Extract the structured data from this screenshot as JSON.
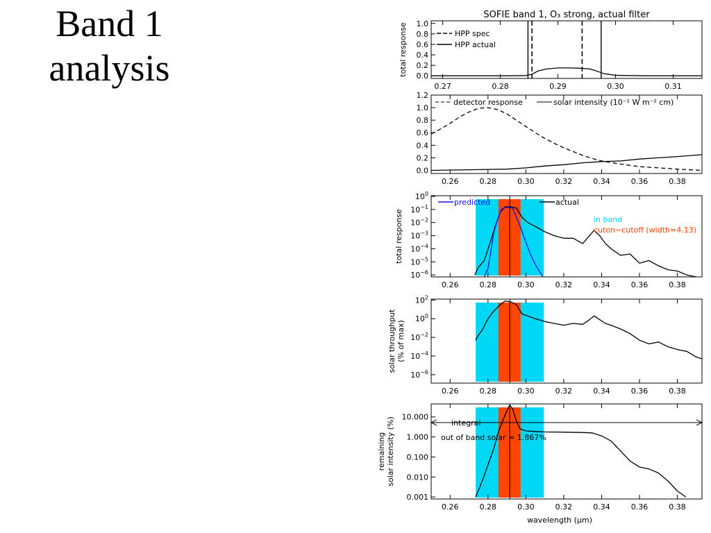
{
  "slide": {
    "title_line1": "Band 1",
    "title_line2": "analysis"
  },
  "colors": {
    "in_band": "#00d8f6",
    "cutoff": "#ff4500",
    "predicted": "#1010ee",
    "axis": "#000000"
  },
  "chart_data": [
    {
      "id": "filter",
      "type": "line",
      "title": "SOFIE band   1, O₃ strong, actual filter",
      "ylabel": "total response",
      "xlim": [
        0.268,
        0.315
      ],
      "ylim": [
        -0.05,
        1.05
      ],
      "yscale": "linear",
      "xticks": [
        0.27,
        0.28,
        0.29,
        0.3,
        0.31
      ],
      "xtick_labels": [
        "0.27",
        "0.28",
        "0.29",
        "0.30",
        "0.31"
      ],
      "yticks": [
        0.0,
        0.2,
        0.4,
        0.6,
        0.8,
        1.0
      ],
      "ytick_labels": [
        "0.0",
        "0.2",
        "0.4",
        "0.6",
        "0.8",
        "1.0"
      ],
      "legend_position": "top-left",
      "series": [
        {
          "name": "HPP actual",
          "style": "solid",
          "x": [
            0.268,
            0.282,
            0.2845,
            0.2855,
            0.2865,
            0.288,
            0.29,
            0.292,
            0.294,
            0.2955,
            0.2965,
            0.298,
            0.3,
            0.305,
            0.315
          ],
          "y": [
            0.0,
            0.0,
            0.005,
            0.03,
            0.09,
            0.13,
            0.15,
            0.15,
            0.145,
            0.13,
            0.1,
            0.04,
            0.01,
            0.0,
            0.0
          ]
        }
      ],
      "vlines": [
        {
          "name": "HPP spec",
          "style": "dashed",
          "x": [
            0.2855,
            0.2942
          ]
        },
        {
          "name": "HPP actual",
          "style": "solid",
          "x": [
            0.2848,
            0.2975
          ]
        }
      ]
    },
    {
      "id": "detector-solar",
      "type": "line",
      "title": "",
      "ylabel": "",
      "xlim": [
        0.25,
        0.393
      ],
      "ylim": [
        -0.05,
        1.2
      ],
      "yscale": "linear",
      "xticks": [
        0.26,
        0.28,
        0.3,
        0.32,
        0.34,
        0.36,
        0.38
      ],
      "xtick_labels": [
        "0.26",
        "0.28",
        "0.30",
        "0.32",
        "0.34",
        "0.36",
        "0.38"
      ],
      "yticks": [
        0.0,
        0.2,
        0.4,
        0.6,
        0.8,
        1.0,
        1.2
      ],
      "ytick_labels": [
        "0.0",
        "0.2",
        "0.4",
        "0.6",
        "0.8",
        "1.0",
        "1.2"
      ],
      "legend_position": "top",
      "series": [
        {
          "name": "detector response",
          "style": "dashed",
          "x": [
            0.25,
            0.255,
            0.26,
            0.265,
            0.27,
            0.275,
            0.28,
            0.285,
            0.29,
            0.295,
            0.3,
            0.305,
            0.31,
            0.315,
            0.32,
            0.325,
            0.33,
            0.335,
            0.34,
            0.35,
            0.36,
            0.37,
            0.38,
            0.393
          ],
          "y": [
            0.58,
            0.66,
            0.75,
            0.85,
            0.93,
            0.99,
            1.0,
            0.97,
            0.9,
            0.8,
            0.7,
            0.6,
            0.51,
            0.43,
            0.36,
            0.3,
            0.24,
            0.19,
            0.15,
            0.1,
            0.06,
            0.04,
            0.02,
            0.0
          ]
        },
        {
          "name": "solar intensity (10⁻¹ W m⁻² cm)",
          "style": "solid",
          "x": [
            0.25,
            0.27,
            0.29,
            0.3,
            0.31,
            0.32,
            0.33,
            0.34,
            0.35,
            0.36,
            0.37,
            0.38,
            0.393
          ],
          "y": [
            0.0,
            0.01,
            0.02,
            0.04,
            0.07,
            0.09,
            0.12,
            0.14,
            0.15,
            0.18,
            0.2,
            0.22,
            0.25
          ]
        }
      ]
    },
    {
      "id": "response-log",
      "type": "line",
      "title": "",
      "ylabel": "total response",
      "xlim": [
        0.25,
        0.393
      ],
      "ylim": [
        -6.15,
        0.05
      ],
      "yscale": "log",
      "xticks": [
        0.26,
        0.28,
        0.3,
        0.32,
        0.34,
        0.36,
        0.38
      ],
      "xtick_labels": [
        "0.26",
        "0.28",
        "0.30",
        "0.32",
        "0.34",
        "0.36",
        "0.38"
      ],
      "ytick_exponents": [
        0,
        -1,
        -2,
        -3,
        -4,
        -5,
        -6
      ],
      "legend_position": "top",
      "bands": [
        {
          "name": "in band",
          "x": [
            0.2735,
            0.3095
          ],
          "color": "#00d8f6"
        },
        {
          "name": "cuton−cutoff (width=4.13)",
          "x": [
            0.2855,
            0.2972
          ],
          "color": "#ff4500"
        }
      ],
      "center_line_x": 0.2915,
      "series": [
        {
          "name": "actual",
          "style": "solid",
          "color": "#000000",
          "x": [
            0.273,
            0.275,
            0.278,
            0.281,
            0.284,
            0.2865,
            0.289,
            0.292,
            0.295,
            0.298,
            0.301,
            0.305,
            0.31,
            0.315,
            0.32,
            0.325,
            0.33,
            0.333,
            0.336,
            0.339,
            0.342,
            0.345,
            0.35,
            0.355,
            0.36,
            0.365,
            0.37,
            0.375,
            0.38,
            0.385,
            0.39
          ],
          "log10_y": [
            -6.0,
            -5.4,
            -4.9,
            -3.6,
            -2.2,
            -1.2,
            -0.8,
            -0.8,
            -0.9,
            -1.6,
            -2.0,
            -2.3,
            -2.7,
            -3.0,
            -3.2,
            -3.2,
            -3.6,
            -3.1,
            -2.6,
            -3.0,
            -3.6,
            -4.0,
            -4.5,
            -4.4,
            -5.1,
            -4.9,
            -5.3,
            -5.6,
            -5.7,
            -6.0,
            -6.3
          ]
        },
        {
          "name": "predicted",
          "style": "solid",
          "color": "#1010ee",
          "x": [
            0.278,
            0.28,
            0.2815,
            0.283,
            0.285,
            0.287,
            0.289,
            0.291,
            0.293,
            0.295,
            0.297,
            0.299,
            0.301,
            0.303,
            0.305,
            0.307,
            0.309
          ],
          "log10_y": [
            -6.2,
            -5.5,
            -4.2,
            -2.8,
            -1.8,
            -1.0,
            -0.85,
            -0.85,
            -0.9,
            -1.6,
            -2.3,
            -3.1,
            -3.9,
            -4.6,
            -5.2,
            -5.7,
            -6.2
          ]
        }
      ]
    },
    {
      "id": "throughput",
      "type": "line",
      "title": "",
      "ylabel": "solar throughput",
      "ylabel2": "(% of max)",
      "xlim": [
        0.25,
        0.393
      ],
      "ylim": [
        -6.9,
        2.1
      ],
      "yscale": "log",
      "xticks": [
        0.26,
        0.28,
        0.3,
        0.32,
        0.34,
        0.36,
        0.38
      ],
      "xtick_labels": [
        "0.26",
        "0.28",
        "0.30",
        "0.32",
        "0.34",
        "0.36",
        "0.38"
      ],
      "ytick_exponents": [
        2,
        0,
        -2,
        -4,
        -6
      ],
      "bands": [
        {
          "name": "in band",
          "x": [
            0.2735,
            0.3095
          ],
          "color": "#00d8f6"
        },
        {
          "name": "cutoff",
          "x": [
            0.2855,
            0.2972
          ],
          "color": "#ff4500"
        }
      ],
      "center_line_x": 0.2915,
      "series": [
        {
          "name": "solar throughput",
          "style": "solid",
          "color": "#000000",
          "x": [
            0.2735,
            0.2745,
            0.277,
            0.28,
            0.283,
            0.2865,
            0.289,
            0.292,
            0.295,
            0.298,
            0.301,
            0.305,
            0.31,
            0.315,
            0.32,
            0.325,
            0.33,
            0.333,
            0.336,
            0.339,
            0.342,
            0.345,
            0.35,
            0.355,
            0.36,
            0.365,
            0.37,
            0.375,
            0.38,
            0.385,
            0.39,
            0.393
          ],
          "log10_y": [
            -2.3,
            -1.9,
            -1.2,
            0.0,
            0.8,
            1.5,
            1.9,
            1.8,
            1.5,
            0.5,
            0.3,
            0.0,
            -0.3,
            -0.5,
            -0.7,
            -0.5,
            -0.6,
            -0.2,
            0.3,
            -0.1,
            -0.5,
            -0.7,
            -1.1,
            -1.6,
            -2.3,
            -2.7,
            -2.5,
            -3.0,
            -3.3,
            -3.5,
            -4.1,
            -4.3
          ]
        }
      ]
    },
    {
      "id": "remaining",
      "type": "line",
      "title": "",
      "ylabel": "remaining",
      "ylabel2": "solar intensity (%)",
      "xlabel": "wavelength (μm)",
      "xlim": [
        0.25,
        0.393
      ],
      "ylim": [
        -3.1,
        1.65
      ],
      "yscale": "log",
      "xticks": [
        0.26,
        0.28,
        0.3,
        0.32,
        0.34,
        0.36,
        0.38
      ],
      "xtick_labels": [
        "0.26",
        "0.28",
        "0.30",
        "0.32",
        "0.34",
        "0.36",
        "0.38"
      ],
      "ytick_exponents": [
        1,
        0,
        -1,
        -2,
        -3
      ],
      "ytick_labels": [
        "10.000",
        "1.000",
        "0.100",
        "0.010",
        "0.001"
      ],
      "bands": [
        {
          "name": "in band",
          "x": [
            0.2735,
            0.3095
          ],
          "color": "#00d8f6"
        },
        {
          "name": "cutoff",
          "x": [
            0.2855,
            0.2972
          ],
          "color": "#ff4500"
        }
      ],
      "center_line_x": 0.2915,
      "annotations": [
        "integral",
        "out of band solar = 1.867%"
      ],
      "integral_log10": 0.72,
      "series": [
        {
          "name": "remaining solar intensity",
          "style": "solid",
          "color": "#000000",
          "x": [
            0.2735,
            0.277,
            0.28,
            0.283,
            0.286,
            0.289,
            0.2915,
            0.293,
            0.295,
            0.297,
            0.3,
            0.305,
            0.31,
            0.32,
            0.33,
            0.335,
            0.34,
            0.345,
            0.35,
            0.355,
            0.36,
            0.365,
            0.37,
            0.375,
            0.38,
            0.3845
          ],
          "log10_y": [
            -3.0,
            -2.2,
            -1.4,
            -0.6,
            0.4,
            1.1,
            1.6,
            1.4,
            0.8,
            0.4,
            0.3,
            0.27,
            0.25,
            0.24,
            0.22,
            0.2,
            0.05,
            -0.2,
            -0.7,
            -1.2,
            -1.5,
            -1.6,
            -1.8,
            -2.2,
            -2.7,
            -3.0
          ]
        }
      ]
    }
  ]
}
